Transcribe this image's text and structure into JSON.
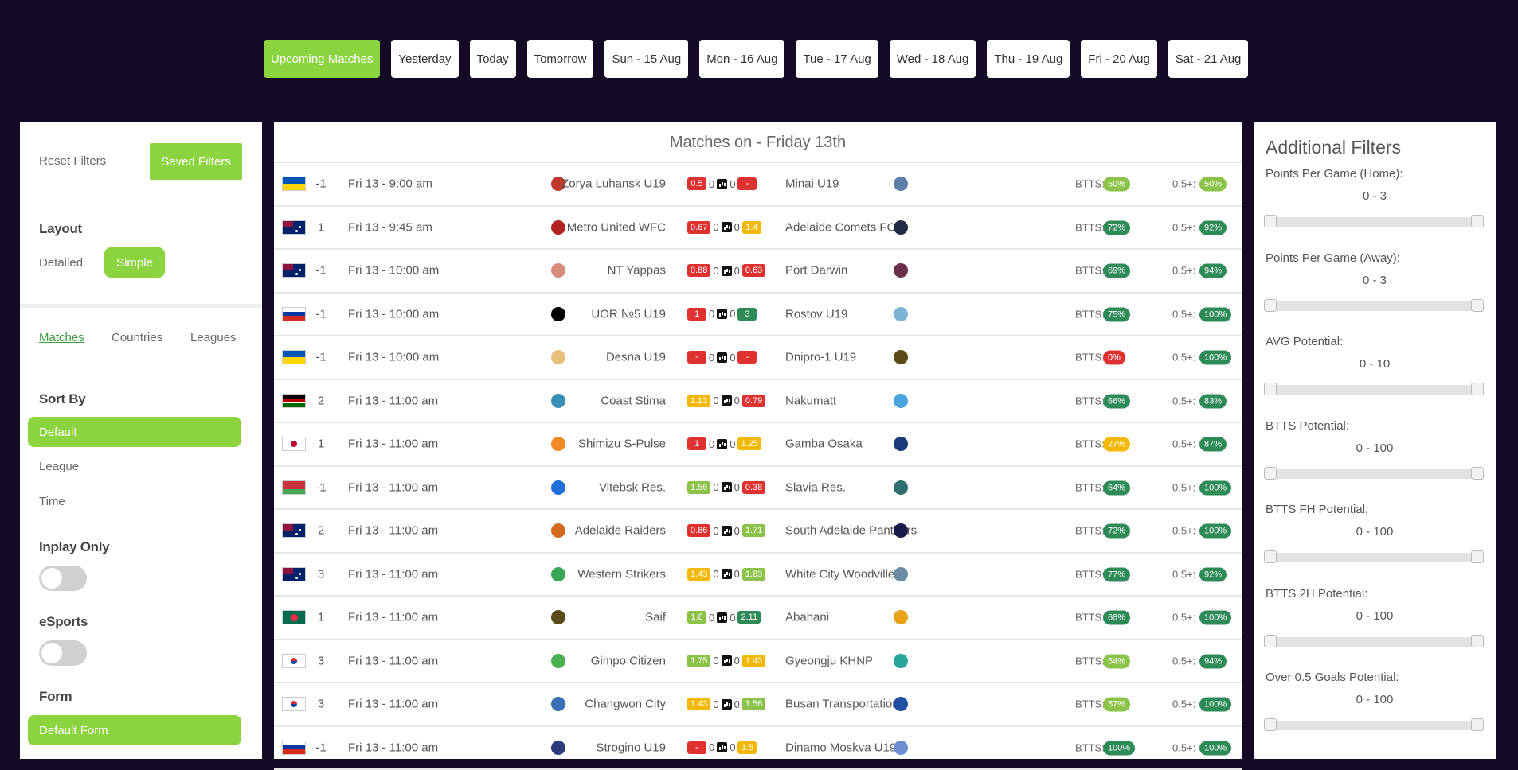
{
  "date_tabs": [
    "Upcoming Matches",
    "Yesterday",
    "Today",
    "Tomorrow",
    "Sun - 15 Aug",
    "Mon - 16 Aug",
    "Tue - 17 Aug",
    "Wed - 18 Aug",
    "Thu - 19 Aug",
    "Fri - 20 Aug",
    "Sat - 21 Aug"
  ],
  "active_tab": "Upcoming Matches",
  "left": {
    "reset_filters": "Reset Filters",
    "saved_filters": "Saved Filters",
    "layout_heading": "Layout",
    "layout_detailed": "Detailed",
    "layout_simple": "Simple",
    "nav": {
      "matches": "Matches",
      "countries": "Countries",
      "leagues": "Leagues"
    },
    "sort_heading": "Sort By",
    "sort_default": "Default",
    "sort_league": "League",
    "sort_time": "Time",
    "inplay_heading": "Inplay Only",
    "esports_heading": "eSports",
    "form_heading": "Form",
    "form_default": "Default Form"
  },
  "center": {
    "title": "Matches on - Friday 13th",
    "btts_label": "BTTS:",
    "o05_label": "0.5+:",
    "matches": [
      {
        "flag": "ukraine",
        "num": "-1",
        "time": "Fri 13 - 9:00 am",
        "home": "Zorya Luhansk U19",
        "hp": "0.5",
        "hpc": "#e03131",
        "hs": "0",
        "as": "0",
        "ap": "-",
        "apc": "#e03131",
        "away": "Minai U19",
        "btts": "50%",
        "bttsc": "#8bc34a",
        "o05": "50%",
        "o05c": "#8bc34a",
        "hlc": "#c0392b",
        "alc": "#5b7fa6"
      },
      {
        "flag": "australia",
        "num": "1",
        "time": "Fri 13 - 9:45 am",
        "home": "Metro United WFC",
        "hp": "0.67",
        "hpc": "#e03131",
        "hs": "0",
        "as": "0",
        "ap": "1.4",
        "apc": "#f5b800",
        "away": "Adelaide Comets FC",
        "btts": "72%",
        "bttsc": "#2e8b57",
        "o05": "92%",
        "o05c": "#2e8b57",
        "hlc": "#b22222",
        "alc": "#1f2a44"
      },
      {
        "flag": "australia",
        "num": "-1",
        "time": "Fri 13 - 10:00 am",
        "home": "NT Yappas",
        "hp": "0.88",
        "hpc": "#e03131",
        "hs": "0",
        "as": "0",
        "ap": "0.63",
        "apc": "#e03131",
        "away": "Port Darwin",
        "btts": "69%",
        "bttsc": "#2e8b57",
        "o05": "94%",
        "o05c": "#2e8b57",
        "hlc": "#d98c7a",
        "alc": "#6b2e4a"
      },
      {
        "flag": "russia",
        "num": "-1",
        "time": "Fri 13 - 10:00 am",
        "home": "UOR №5 U19",
        "hp": "1",
        "hpc": "#e03131",
        "hs": "0",
        "as": "0",
        "ap": "3",
        "apc": "#2e8b57",
        "away": "Rostov U19",
        "btts": "75%",
        "bttsc": "#2e8b57",
        "o05": "100%",
        "o05c": "#2e8b57",
        "hlc": "#000000",
        "alc": "#7fb3d5"
      },
      {
        "flag": "ukraine",
        "num": "-1",
        "time": "Fri 13 - 10:00 am",
        "home": "Desna U19",
        "hp": "-",
        "hpc": "#e03131",
        "hs": "0",
        "as": "0",
        "ap": "-",
        "apc": "#e03131",
        "away": "Dnipro-1 U19",
        "btts": "0%",
        "bttsc": "#e03131",
        "o05": "100%",
        "o05c": "#2e8b57",
        "hlc": "#e6c07b",
        "alc": "#5a4a1a"
      },
      {
        "flag": "kenya",
        "num": "2",
        "time": "Fri 13 - 11:00 am",
        "home": "Coast Stima",
        "hp": "1.13",
        "hpc": "#f5b800",
        "hs": "0",
        "as": "0",
        "ap": "0.79",
        "apc": "#e03131",
        "away": "Nakumatt",
        "btts": "66%",
        "bttsc": "#2e8b57",
        "o05": "83%",
        "o05c": "#2e8b57",
        "hlc": "#3a8fb7",
        "alc": "#4aa3df"
      },
      {
        "flag": "japan",
        "num": "1",
        "time": "Fri 13 - 11:00 am",
        "home": "Shimizu S-Pulse",
        "hp": "1",
        "hpc": "#e03131",
        "hs": "0",
        "as": "0",
        "ap": "1.25",
        "apc": "#f5b800",
        "away": "Gamba Osaka",
        "btts": "27%",
        "bttsc": "#f5b800",
        "o05": "87%",
        "o05c": "#2e8b57",
        "hlc": "#f08a24",
        "alc": "#1a3a7a"
      },
      {
        "flag": "belarus",
        "num": "-1",
        "time": "Fri 13 - 11:00 am",
        "home": "Vitebsk Res.",
        "hp": "1.56",
        "hpc": "#8bc34a",
        "hs": "0",
        "as": "0",
        "ap": "0.38",
        "apc": "#e03131",
        "away": "Slavia Res.",
        "btts": "64%",
        "bttsc": "#2e8b57",
        "o05": "100%",
        "o05c": "#2e8b57",
        "hlc": "#1e6fd9",
        "alc": "#2f6f6f"
      },
      {
        "flag": "australia",
        "num": "2",
        "time": "Fri 13 - 11:00 am",
        "home": "Adelaide Raiders",
        "hp": "0.86",
        "hpc": "#e03131",
        "hs": "0",
        "as": "0",
        "ap": "1.71",
        "apc": "#8bc34a",
        "away": "South Adelaide Panthers",
        "btts": "72%",
        "bttsc": "#2e8b57",
        "o05": "100%",
        "o05c": "#2e8b57",
        "hlc": "#d2691e",
        "alc": "#1a1a4a"
      },
      {
        "flag": "australia",
        "num": "3",
        "time": "Fri 13 - 11:00 am",
        "home": "Western Strikers",
        "hp": "1.43",
        "hpc": "#f5b800",
        "hs": "0",
        "as": "0",
        "ap": "1.83",
        "apc": "#8bc34a",
        "away": "White City Woodville",
        "btts": "77%",
        "bttsc": "#2e8b57",
        "o05": "92%",
        "o05c": "#2e8b57",
        "hlc": "#3aa655",
        "alc": "#6b8ba4"
      },
      {
        "flag": "bangladesh",
        "num": "1",
        "time": "Fri 13 - 11:00 am",
        "home": "Saif",
        "hp": "1.6",
        "hpc": "#8bc34a",
        "hs": "0",
        "as": "0",
        "ap": "2.11",
        "apc": "#2e8b57",
        "away": "Abahani",
        "btts": "68%",
        "bttsc": "#2e8b57",
        "o05": "100%",
        "o05c": "#2e8b57",
        "hlc": "#5a4a1a",
        "alc": "#e8a317"
      },
      {
        "flag": "korea",
        "num": "3",
        "time": "Fri 13 - 11:00 am",
        "home": "Gimpo Citizen",
        "hp": "1.75",
        "hpc": "#8bc34a",
        "hs": "0",
        "as": "0",
        "ap": "1.43",
        "apc": "#f5b800",
        "away": "Gyeongju KHNP",
        "btts": "54%",
        "bttsc": "#8bc34a",
        "o05": "94%",
        "o05c": "#2e8b57",
        "hlc": "#4caf50",
        "alc": "#26a69a"
      },
      {
        "flag": "korea",
        "num": "3",
        "time": "Fri 13 - 11:00 am",
        "home": "Changwon City",
        "hp": "1.43",
        "hpc": "#f5b800",
        "hs": "0",
        "as": "0",
        "ap": "1.56",
        "apc": "#8bc34a",
        "away": "Busan Transportation",
        "btts": "57%",
        "bttsc": "#8bc34a",
        "o05": "100%",
        "o05c": "#2e8b57",
        "hlc": "#3b6fb6",
        "alc": "#1f4fa0"
      },
      {
        "flag": "russia",
        "num": "-1",
        "time": "Fri 13 - 11:00 am",
        "home": "Strogino U19",
        "hp": "-",
        "hpc": "#e03131",
        "hs": "0",
        "as": "0",
        "ap": "1.5",
        "apc": "#f5b800",
        "away": "Dinamo Moskva U19",
        "btts": "100%",
        "bttsc": "#2e8b57",
        "o05": "100%",
        "o05c": "#2e8b57",
        "hlc": "#2a3a7a",
        "alc": "#6b8fd0"
      }
    ]
  },
  "right": {
    "title": "Additional Filters",
    "filters": [
      {
        "label": "Points Per Game (Home):",
        "range": "0 - 3"
      },
      {
        "label": "Points Per Game (Away):",
        "range": "0 - 3"
      },
      {
        "label": "AVG Potential:",
        "range": "0 - 10"
      },
      {
        "label": "BTTS Potential:",
        "range": "0 - 100"
      },
      {
        "label": "BTTS FH Potential:",
        "range": "0 - 100"
      },
      {
        "label": "BTTS 2H Potential:",
        "range": "0 - 100"
      },
      {
        "label": "Over 0.5 Goals Potential:",
        "range": "0 - 100"
      }
    ]
  }
}
